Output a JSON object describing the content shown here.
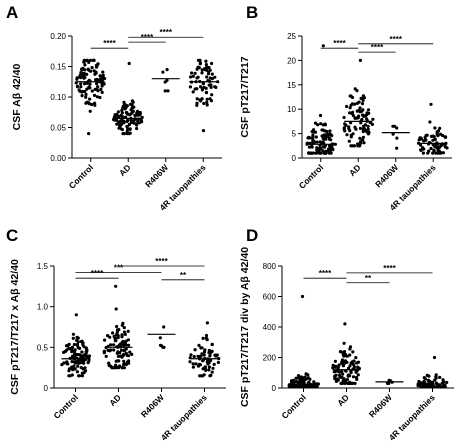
{
  "chart_data": [
    {
      "panel": "A",
      "type": "scatter",
      "ylabel": "CSF Aβ 42/40",
      "categories": [
        "Control",
        "AD",
        "R406W",
        "4R tauopathies"
      ],
      "ylim": [
        0,
        0.2
      ],
      "yticks": [
        "0.00",
        "0.05",
        "0.10",
        "0.15",
        "0.20"
      ],
      "ytick_values": [
        0,
        0.05,
        0.1,
        0.15,
        0.2
      ],
      "medians": [
        0.125,
        0.065,
        0.13,
        0.125
      ],
      "spread": [
        {
          "n": 110,
          "min": 0.04,
          "max": 0.16,
          "sd": 0.02
        },
        {
          "n": 100,
          "min": 0.04,
          "max": 0.155,
          "sd": 0.013
        },
        {
          "n": 6,
          "min": 0.11,
          "max": 0.145,
          "sd": 0.012
        },
        {
          "n": 70,
          "min": 0.045,
          "max": 0.16,
          "sd": 0.022
        }
      ],
      "brackets": [
        {
          "from": 0,
          "to": 1,
          "label": "****",
          "y": 0.18
        },
        {
          "from": 1,
          "to": 2,
          "label": "****",
          "y": 0.19
        },
        {
          "from": 1,
          "to": 3,
          "label": "****",
          "y": 0.198
        }
      ]
    },
    {
      "panel": "B",
      "type": "scatter",
      "ylabel": "CSF pT217/T217",
      "categories": [
        "Control",
        "AD",
        "R406W",
        "4R tauopathies"
      ],
      "ylim": [
        0,
        25
      ],
      "yticks": [
        "0",
        "5",
        "10",
        "15",
        "20",
        "25"
      ],
      "ytick_values": [
        0,
        5,
        10,
        15,
        20,
        25
      ],
      "medians": [
        2.8,
        7.5,
        5.2,
        3.0
      ],
      "spread": [
        {
          "n": 110,
          "min": 1.0,
          "max": 23.0,
          "sd": 2.2
        },
        {
          "n": 100,
          "min": 2.5,
          "max": 20.0,
          "sd": 3.5
        },
        {
          "n": 6,
          "min": 2.0,
          "max": 6.5,
          "sd": 1.5
        },
        {
          "n": 70,
          "min": 1.0,
          "max": 11.0,
          "sd": 1.8
        }
      ],
      "brackets": [
        {
          "from": 0,
          "to": 1,
          "label": "****",
          "y": 22.5
        },
        {
          "from": 1,
          "to": 2,
          "label": "****",
          "y": 21.7
        },
        {
          "from": 1,
          "to": 3,
          "label": "****",
          "y": 23.4
        }
      ]
    },
    {
      "panel": "C",
      "type": "scatter",
      "ylabel": "CSF pT217/T217 x Aβ 42/40",
      "categories": [
        "Control",
        "AD",
        "R406W",
        "4R tauopathies"
      ],
      "ylim": [
        0,
        1.5
      ],
      "yticks": [
        "0",
        "0.5",
        "1.0",
        "1.5"
      ],
      "ytick_values": [
        0,
        0.5,
        1.0,
        1.5
      ],
      "medians": [
        0.36,
        0.5,
        0.66,
        0.36
      ],
      "spread": [
        {
          "n": 110,
          "min": 0.15,
          "max": 0.9,
          "sd": 0.13
        },
        {
          "n": 100,
          "min": 0.25,
          "max": 1.25,
          "sd": 0.18
        },
        {
          "n": 6,
          "min": 0.5,
          "max": 0.75,
          "sd": 0.1
        },
        {
          "n": 70,
          "min": 0.15,
          "max": 0.8,
          "sd": 0.12
        }
      ],
      "brackets": [
        {
          "from": 0,
          "to": 1,
          "label": "****",
          "y": 1.35
        },
        {
          "from": 0,
          "to": 2,
          "label": "***",
          "y": 1.42
        },
        {
          "from": 2,
          "to": 3,
          "label": "**",
          "y": 1.33
        },
        {
          "from": 1,
          "to": 3,
          "label": "****",
          "y": 1.5
        }
      ]
    },
    {
      "panel": "D",
      "type": "scatter",
      "ylabel": "CSF pT217/T217 div by Aβ 42/40",
      "categories": [
        "Control",
        "AD",
        "R406W",
        "4R tauopathies"
      ],
      "ylim": [
        0,
        800
      ],
      "yticks": [
        "0",
        "200",
        "400",
        "600",
        "800"
      ],
      "ytick_values": [
        0,
        200,
        400,
        600,
        800
      ],
      "medians": [
        22,
        120,
        40,
        25
      ],
      "spread": [
        {
          "n": 110,
          "min": 8,
          "max": 600,
          "sd": 30
        },
        {
          "n": 100,
          "min": 30,
          "max": 420,
          "sd": 70
        },
        {
          "n": 6,
          "min": 30,
          "max": 50,
          "sd": 7
        },
        {
          "n": 70,
          "min": 8,
          "max": 200,
          "sd": 30
        }
      ],
      "brackets": [
        {
          "from": 0,
          "to": 1,
          "label": "****",
          "y": 720
        },
        {
          "from": 1,
          "to": 2,
          "label": "**",
          "y": 690
        },
        {
          "from": 1,
          "to": 3,
          "label": "****",
          "y": 755
        }
      ]
    }
  ]
}
